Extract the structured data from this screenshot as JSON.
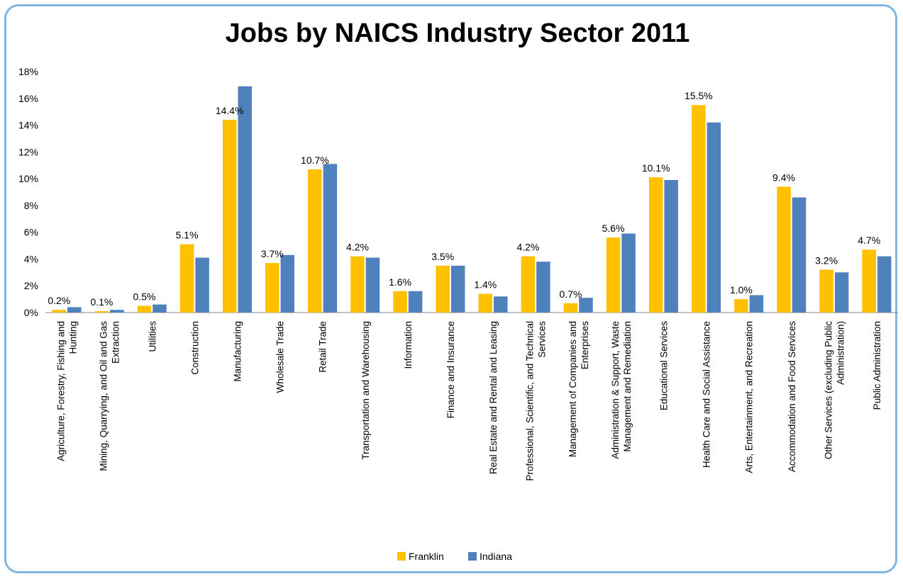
{
  "chart_data": {
    "type": "bar",
    "title": "Jobs by NAICS Industry Sector 2011",
    "xlabel": "",
    "ylabel": "",
    "ylim": [
      0,
      18
    ],
    "yticks": [
      "0%",
      "2%",
      "4%",
      "6%",
      "8%",
      "10%",
      "12%",
      "14%",
      "16%",
      "18%"
    ],
    "grid": false,
    "legend_position": "bottom",
    "categories": [
      [
        "Agriculture, Forestry, Fishing and",
        "Hunting"
      ],
      [
        "Mining, Quarrying, and Oil and Gas",
        "Extraction"
      ],
      [
        "Utilities"
      ],
      [
        "Construction"
      ],
      [
        "Manufacturing"
      ],
      [
        "Wholesale Trade"
      ],
      [
        "Retail Trade"
      ],
      [
        "Transportation and Warehousing"
      ],
      [
        "Information"
      ],
      [
        "Finance and Insurance"
      ],
      [
        "Real Estate and Rental and Leasing"
      ],
      [
        "Professional, Scientific, and Technical",
        "Services"
      ],
      [
        "Management of Companies and",
        "Enterprises"
      ],
      [
        "Administration & Support, Waste",
        "Management and Remediation"
      ],
      [
        "Educational Services"
      ],
      [
        "Health Care and Social Assistance"
      ],
      [
        "Arts, Entertainment, and Recreation"
      ],
      [
        "Accommodation and Food Services"
      ],
      [
        "Other Services (excluding Public",
        "Administration)"
      ],
      [
        "Public Administration"
      ]
    ],
    "series": [
      {
        "name": "Franklin",
        "color": "#ffc000",
        "values": [
          0.2,
          0.1,
          0.5,
          5.1,
          14.4,
          3.7,
          10.7,
          4.2,
          1.6,
          3.5,
          1.4,
          4.2,
          0.7,
          5.6,
          10.1,
          15.5,
          1.0,
          9.4,
          3.2,
          4.7
        ],
        "data_labels": [
          "0.2%",
          "0.1%",
          "0.5%",
          "5.1%",
          "14.4%",
          "3.7%",
          "10.7%",
          "4.2%",
          "1.6%",
          "3.5%",
          "1.4%",
          "4.2%",
          "0.7%",
          "5.6%",
          "10.1%",
          "15.5%",
          "1.0%",
          "9.4%",
          "3.2%",
          "4.7%"
        ]
      },
      {
        "name": "Indiana",
        "color": "#4f81bd",
        "values": [
          0.4,
          0.2,
          0.6,
          4.1,
          16.9,
          4.3,
          11.1,
          4.1,
          1.6,
          3.5,
          1.2,
          3.8,
          1.1,
          5.9,
          9.9,
          14.2,
          1.3,
          8.6,
          3.0,
          4.2
        ]
      }
    ]
  }
}
